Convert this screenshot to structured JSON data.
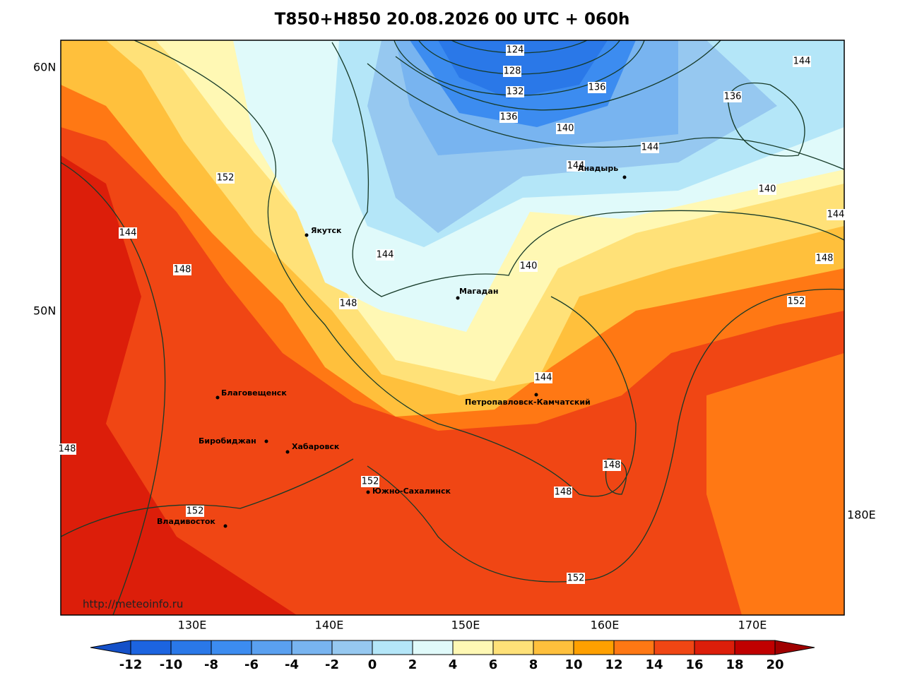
{
  "header": {
    "title": "T850+H850 20.08.2026 00 UTC + 060h"
  },
  "map": {
    "lat_labels": [
      "60N",
      "50N"
    ],
    "lon_labels": [
      "130E",
      "140E",
      "150E",
      "160E",
      "170E",
      "180E"
    ],
    "cities": [
      "Якутск",
      "Магадан",
      "Анадырь",
      "Благовещенск",
      "Биробиджан",
      "Хабаровск",
      "Петропавловск-Камчатский",
      "Южно-Сахалинск",
      "Владивосток"
    ],
    "contour_labels": [
      "124",
      "128",
      "132",
      "136",
      "136",
      "144",
      "136",
      "140",
      "144",
      "144",
      "140",
      "152",
      "144",
      "148",
      "144",
      "140",
      "148",
      "144",
      "148",
      "152",
      "144",
      "148",
      "152",
      "148",
      "148",
      "152",
      "152"
    ],
    "credit": "http://meteoinfo.ru"
  },
  "colorbar": {
    "ticks": [
      -12,
      -10,
      -8,
      -6,
      -4,
      -2,
      0,
      2,
      4,
      6,
      8,
      10,
      12,
      14,
      16,
      18,
      20
    ],
    "colors": [
      "#1c64e0",
      "#2a78e8",
      "#3c8cf0",
      "#5aa0f0",
      "#78b4f0",
      "#96c8f0",
      "#b4e6f8",
      "#e0fafa",
      "#fff8b4",
      "#ffe178",
      "#ffc03c",
      "#ffa000",
      "#ff7814",
      "#f04614",
      "#dc1e0a",
      "#c00000"
    ],
    "extend_colors": [
      "#1450c8",
      "#a00000"
    ]
  }
}
